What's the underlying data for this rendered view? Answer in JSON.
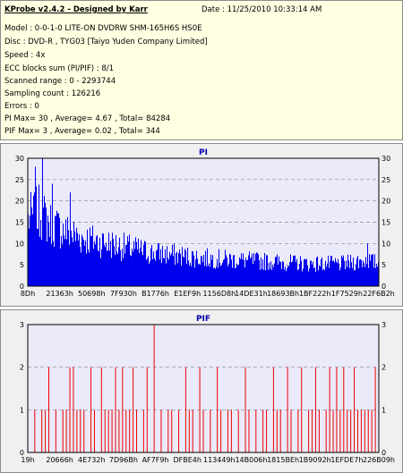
{
  "info": {
    "title": "KProbe v2.4.2 - Designed by Karr",
    "date": "Date : 11/25/2010 10:33:14 AM",
    "lines": [
      "Model : 0-0-1-0 LITE-ON DVDRW SHM-165H6S HS0E",
      "Disc : DVD-R , TYG03 [Taiyo Yuden Company Limited]",
      "Speed : 4x",
      "ECC blocks sum (PI/PIF) : 8/1",
      "Scanned range : 0 - 2293744",
      "Sampling count : 126216",
      "Errors : 0",
      "PI Max= 30 , Average= 4.67 , Total= 84284",
      "PIF Max= 3 , Average= 0.02 , Total= 344"
    ]
  },
  "colors": {
    "panel_bg": "#ffffe1",
    "chart_bg": "#eaeafa",
    "pi_bar": "#0000ee",
    "pif_bar": "#ee0000",
    "grid": "#888888",
    "title_blue": "#0000aa"
  },
  "chart_data": [
    {
      "type": "bar",
      "title": "PI",
      "ylim": [
        0,
        30
      ],
      "yticks": [
        "0",
        "5",
        "10",
        "15",
        "20",
        "25",
        "30"
      ],
      "xticks": [
        "8Dh",
        "21363h",
        "50698h",
        "7F930h",
        "B1776h",
        "E1EF9h",
        "1156D8h",
        "14DE31h",
        "18693Bh",
        "1BF222h",
        "1F7529h",
        "22F6B2h"
      ],
      "grid": true,
      "profile": [
        [
          0,
          18
        ],
        [
          0.03,
          20
        ],
        [
          0.06,
          17
        ],
        [
          0.1,
          15
        ],
        [
          0.15,
          13
        ],
        [
          0.2,
          12
        ],
        [
          0.25,
          11
        ],
        [
          0.3,
          10
        ],
        [
          0.35,
          9
        ],
        [
          0.4,
          8.5
        ],
        [
          0.45,
          8
        ],
        [
          0.5,
          7.5
        ],
        [
          0.6,
          7
        ],
        [
          0.7,
          6.5
        ],
        [
          0.8,
          6
        ],
        [
          0.9,
          6
        ],
        [
          0.97,
          7
        ],
        [
          1.0,
          6
        ]
      ],
      "peaks": [
        {
          "x": 0.04,
          "value": 30
        },
        {
          "x": 0.02,
          "value": 28
        },
        {
          "x": 0.07,
          "value": 24
        },
        {
          "x": 0.12,
          "value": 22
        },
        {
          "x": 0.97,
          "value": 10
        }
      ]
    },
    {
      "type": "bar",
      "title": "PIF",
      "ylim": [
        0,
        3
      ],
      "yticks": [
        "0",
        "1",
        "2",
        "3"
      ],
      "xticks": [
        "19h",
        "20666h",
        "4E732h",
        "7D96Bh",
        "AF7F9h",
        "DFBE4h",
        "113449h",
        "14B006h",
        "1815BEh",
        "1B9092h",
        "1EFDE7h",
        "226B09h"
      ],
      "grid": true,
      "level_three": [
        0.36
      ],
      "level_two": [
        0.06,
        0.12,
        0.13,
        0.18,
        0.21,
        0.25,
        0.27,
        0.3,
        0.34,
        0.45,
        0.49,
        0.54,
        0.62,
        0.7,
        0.74,
        0.78,
        0.82,
        0.86,
        0.88,
        0.9,
        0.93,
        0.99
      ],
      "level_one": [
        0.02,
        0.04,
        0.05,
        0.08,
        0.1,
        0.11,
        0.14,
        0.15,
        0.16,
        0.19,
        0.22,
        0.23,
        0.24,
        0.26,
        0.28,
        0.29,
        0.31,
        0.33,
        0.38,
        0.4,
        0.41,
        0.43,
        0.46,
        0.47,
        0.5,
        0.52,
        0.55,
        0.57,
        0.58,
        0.6,
        0.63,
        0.65,
        0.67,
        0.68,
        0.71,
        0.72,
        0.75,
        0.77,
        0.8,
        0.81,
        0.83,
        0.85,
        0.87,
        0.89,
        0.91,
        0.92,
        0.94,
        0.95,
        0.96,
        0.97,
        0.98,
        1.0
      ]
    }
  ]
}
